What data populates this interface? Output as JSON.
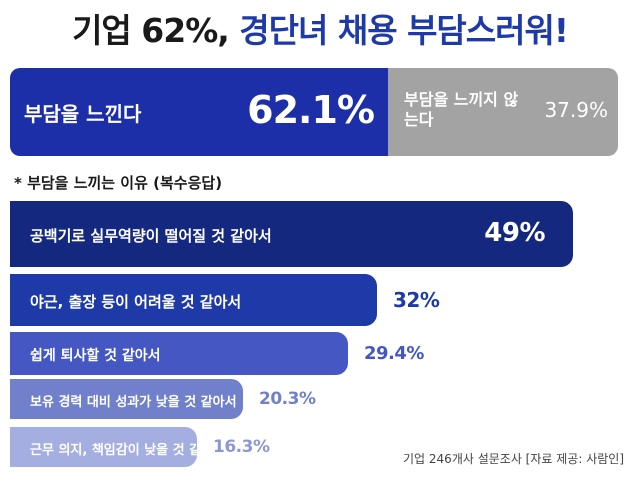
{
  "header": {
    "title_part1": "기업 62%,",
    "title_part2": "경단녀 채용 부담스러워!"
  },
  "chart_data": [
    {
      "type": "bar",
      "orientation": "stacked-horizontal",
      "categories": [
        "부담을 느낀다",
        "부담을 느끼지 않는다"
      ],
      "values": [
        62.1,
        37.9
      ],
      "value_labels": [
        "62.1%",
        "37.9%"
      ],
      "colors": [
        "#1d2fa8",
        "#a3a3a3"
      ]
    },
    {
      "type": "bar",
      "orientation": "horizontal",
      "title": "* 부담을 느끼는 이유 (복수응답)",
      "categories": [
        "공백기로 실무역량이 떨어질 것 같아서",
        "야근, 출장 등이 어려울 것 같아서",
        "쉽게 퇴사할 것 같아서",
        "보유 경력 대비 성과가 낮을 것 같아서",
        "근무 의지, 책임감이 낮을 것 같아서"
      ],
      "values": [
        49,
        32,
        29.4,
        20.3,
        16.3
      ],
      "value_labels": [
        "49%",
        "32%",
        "29.4%",
        "20.3%",
        "16.3%"
      ],
      "colors": [
        "#15287f",
        "#1d3aa8",
        "#4457c2",
        "#7180cb",
        "#a5aee0"
      ],
      "value_colors": [
        "#ffffff",
        "#1d3aa8",
        "#4457c2",
        "#7180cb",
        "#8d97d6"
      ],
      "xlim": [
        0,
        50
      ]
    }
  ],
  "footer": {
    "source": "기업 246개사 설문조사 [자료 제공: 사람인]"
  }
}
